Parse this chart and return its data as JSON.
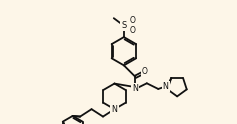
{
  "background_color": "#fdf6e8",
  "line_color": "#111111",
  "lw": 1.3,
  "figsize": [
    2.37,
    1.24
  ],
  "dpi": 100,
  "xlim": [
    -4.5,
    10.5
  ],
  "ylim": [
    -4.2,
    5.0
  ]
}
